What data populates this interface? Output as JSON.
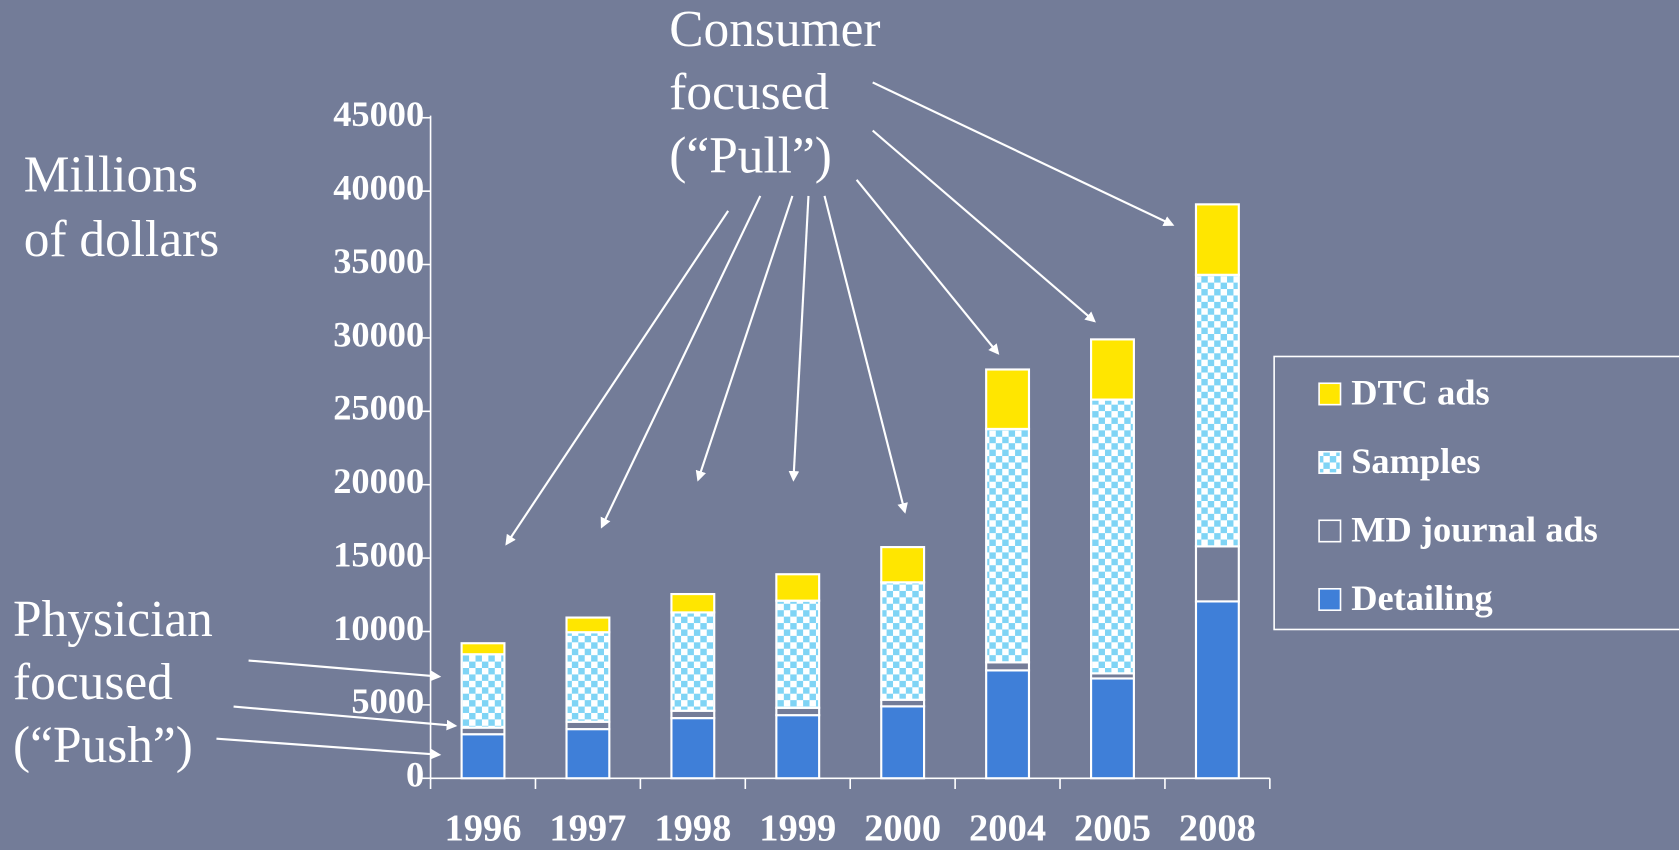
{
  "chart_data": {
    "type": "stacked_bar",
    "y_label": [
      "Millions",
      "of dollars"
    ],
    "annotations": [
      {
        "lines": [
          "Consumer",
          "focused",
          "(“Pull”)"
        ]
      },
      {
        "lines": [
          "Physician",
          "focused",
          "(“Push”)"
        ]
      }
    ],
    "categories": [
      "1996",
      "1997",
      "1998",
      "1999",
      "2000",
      "2004",
      "2005",
      "2008"
    ],
    "series": [
      {
        "name": "Detailing",
        "color": "#3f7fd8",
        "values": [
          3000,
          3350,
          4100,
          4300,
          4900,
          7350,
          6800,
          12050
        ]
      },
      {
        "name": "MD journal ads",
        "color": "#737c98",
        "values": [
          450,
          500,
          500,
          500,
          450,
          550,
          350,
          3750
        ]
      },
      {
        "name": "Samples",
        "color": "#7fd4f5",
        "values": [
          5000,
          6100,
          6700,
          7300,
          8000,
          15900,
          18650,
          18500
        ]
      },
      {
        "name": "DTC ads",
        "color": "#ffe600",
        "values": [
          750,
          1000,
          1250,
          1800,
          2400,
          4050,
          4100,
          4800
        ]
      }
    ],
    "ylim": [
      0,
      45000
    ],
    "yticks": [
      0,
      5000,
      10000,
      15000,
      20000,
      25000,
      30000,
      35000,
      40000,
      45000
    ]
  }
}
